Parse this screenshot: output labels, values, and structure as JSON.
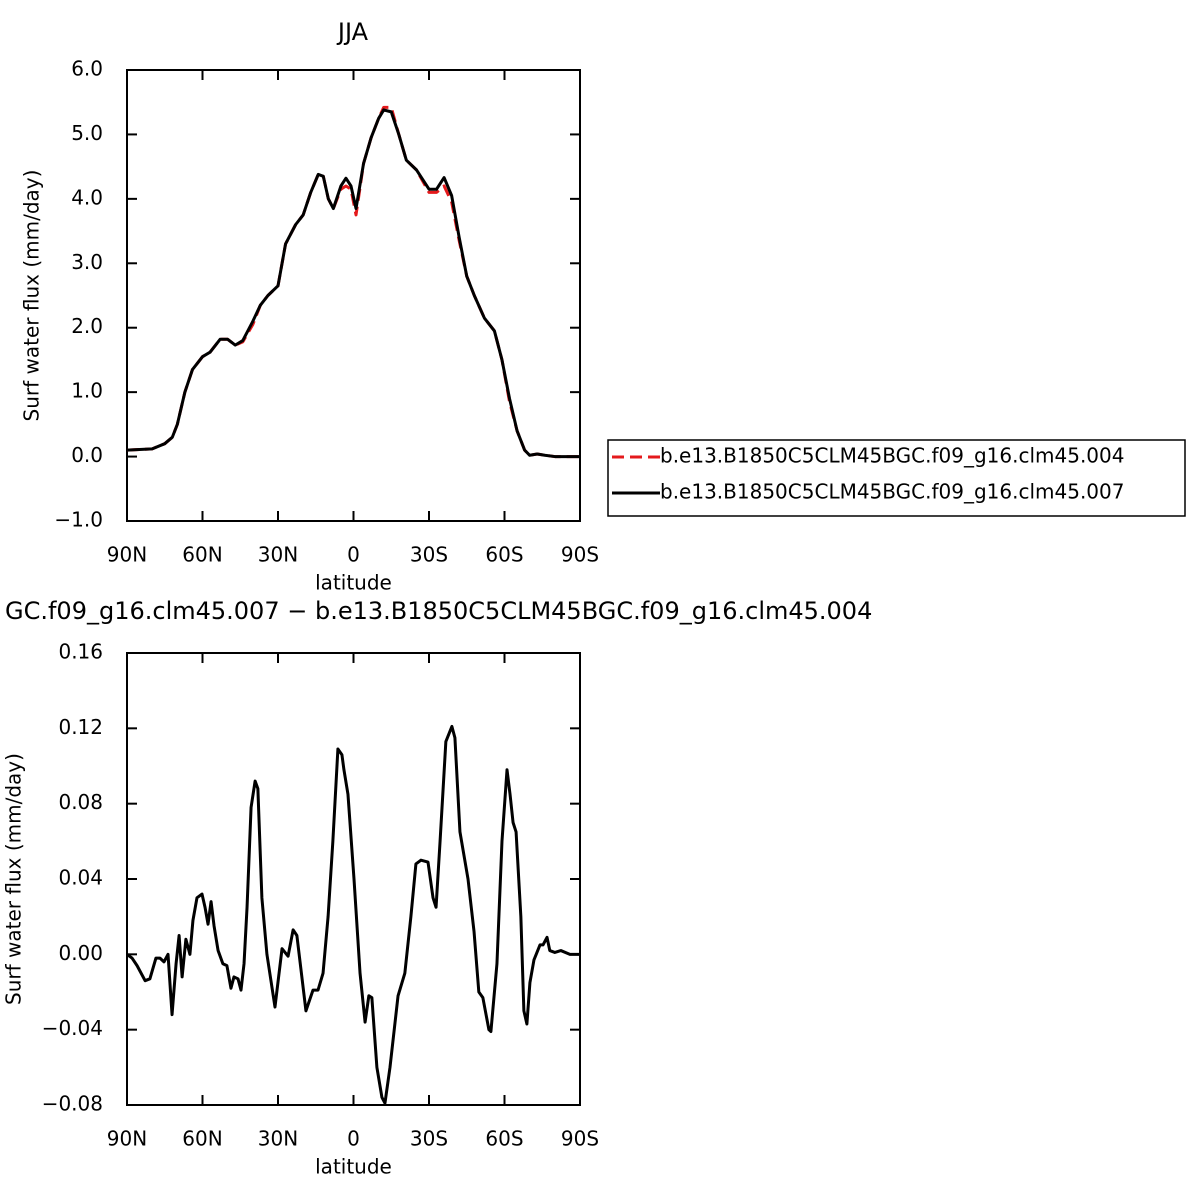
{
  "chart_data": [
    {
      "type": "line",
      "title": "JJA",
      "xlabel": "latitude",
      "ylabel": "Surf water flux (mm/day)",
      "xlim": [
        90,
        -90
      ],
      "xticks": [
        {
          "value": 90,
          "label": "90N"
        },
        {
          "value": 60,
          "label": "60N"
        },
        {
          "value": 30,
          "label": "30N"
        },
        0,
        {
          "value": -30,
          "label": "30S"
        },
        {
          "value": -60,
          "label": "60S"
        },
        {
          "value": -90,
          "label": "90S"
        }
      ],
      "ylim": [
        -1,
        6
      ],
      "yticks": [
        {
          "value": -1,
          "label": "−1.0"
        },
        {
          "value": 0,
          "label": "0.0"
        },
        {
          "value": 1,
          "label": "1.0"
        },
        {
          "value": 2,
          "label": "2.0"
        },
        {
          "value": 3,
          "label": "3.0"
        },
        {
          "value": 4,
          "label": "4.0"
        },
        {
          "value": 5,
          "label": "5.0"
        },
        {
          "value": 6,
          "label": "6.0"
        }
      ],
      "legend": "right",
      "x": [
        90,
        85,
        80,
        75,
        72,
        70,
        67,
        64,
        60,
        57,
        53,
        50,
        47,
        44,
        40,
        37,
        34,
        30,
        27,
        23,
        20,
        17,
        14,
        12,
        10,
        8,
        5,
        3,
        1,
        -1,
        -4,
        -7,
        -10,
        -12,
        -15,
        -18,
        -21,
        -25,
        -30,
        -33,
        -36,
        -39,
        -42,
        -45,
        -48,
        -52,
        -56,
        -59,
        -62,
        -65,
        -68,
        -70,
        -73,
        -76,
        -80,
        -85,
        -90
      ],
      "series": [
        {
          "name": "b.e13.B1850C5CLM45BGC.f09_g16.clm45.004",
          "color": "#e41a1c",
          "linestyle": "dashed",
          "values": [
            0.1,
            0.11,
            0.12,
            0.2,
            0.3,
            0.5,
            1.0,
            1.35,
            1.55,
            1.62,
            1.82,
            1.82,
            1.73,
            1.78,
            2.05,
            2.35,
            2.5,
            2.65,
            3.3,
            3.6,
            3.75,
            4.1,
            4.38,
            4.35,
            4.0,
            3.85,
            4.15,
            4.2,
            4.15,
            3.75,
            4.55,
            4.95,
            5.25,
            5.42,
            5.42,
            5.0,
            4.6,
            4.45,
            4.1,
            4.1,
            4.2,
            3.95,
            3.35,
            2.8,
            2.5,
            2.15,
            1.95,
            1.5,
            0.85,
            0.4,
            0.1,
            0.02,
            0.04,
            0.02,
            0.0,
            0.0,
            0.0
          ]
        },
        {
          "name": "b.e13.B1850C5CLM45BGC.f09_g16.clm45.007",
          "color": "#000000",
          "linestyle": "solid",
          "values": [
            0.1,
            0.11,
            0.12,
            0.2,
            0.3,
            0.5,
            1.0,
            1.35,
            1.55,
            1.62,
            1.82,
            1.82,
            1.73,
            1.8,
            2.1,
            2.35,
            2.5,
            2.65,
            3.3,
            3.6,
            3.75,
            4.1,
            4.38,
            4.35,
            4.0,
            3.85,
            4.2,
            4.32,
            4.2,
            3.85,
            4.55,
            4.95,
            5.25,
            5.38,
            5.35,
            5.0,
            4.6,
            4.45,
            4.15,
            4.15,
            4.33,
            4.05,
            3.4,
            2.8,
            2.5,
            2.15,
            1.95,
            1.5,
            0.9,
            0.4,
            0.1,
            0.02,
            0.04,
            0.02,
            0.0,
            0.0,
            0.0
          ]
        }
      ]
    },
    {
      "type": "line",
      "title": "GC.f09_g16.clm45.007 − b.e13.B1850C5CLM45BGC.f09_g16.clm45.004",
      "xlabel": "latitude",
      "ylabel": "Surf water flux (mm/day)",
      "xlim": [
        90,
        -90
      ],
      "xticks": [
        {
          "value": 90,
          "label": "90N"
        },
        {
          "value": 60,
          "label": "60N"
        },
        {
          "value": 30,
          "label": "30N"
        },
        0,
        {
          "value": -30,
          "label": "30S"
        },
        {
          "value": -60,
          "label": "60S"
        },
        {
          "value": -90,
          "label": "90S"
        }
      ],
      "ylim": [
        -0.08,
        0.16
      ],
      "yticks": [
        {
          "value": -0.08,
          "label": "−0.08"
        },
        {
          "value": -0.04,
          "label": "−0.04"
        },
        {
          "value": 0,
          "label": "0.00"
        },
        0.04,
        0.08,
        0.12,
        0.16
      ],
      "color": "#000000",
      "x": [
        90,
        88,
        86,
        82.8,
        80.9,
        78.5,
        76.9,
        75.3,
        73.7,
        72.1,
        70.5,
        69.3,
        68.1,
        66.6,
        65,
        63.8,
        62.2,
        60.2,
        59,
        57.8,
        56.6,
        55.4,
        53.8,
        51.9,
        50.3,
        48.7,
        47.5,
        45.9,
        44.7,
        43.5,
        42.3,
        40.7,
        39.1,
        38,
        36.4,
        34.4,
        31.2,
        28.4,
        26,
        24,
        22.5,
        18.9,
        16.1,
        14.1,
        12.1,
        10.1,
        8.2,
        6.2,
        4.6,
        3.8,
        2.2,
        -0.2,
        -2.6,
        -4.6,
        -6.1,
        -7.3,
        -9.3,
        -11.3,
        -12.5,
        -14.5,
        -17.7,
        -20.4,
        -22.8,
        -24.8,
        -26.8,
        -29.6,
        -31.6,
        -32.8,
        -34.4,
        -36.7,
        -39.1,
        -40.3,
        -42.3,
        -45.5,
        -47.9,
        -49.8,
        -51.4,
        -53.8,
        -54.6,
        -57,
        -59,
        -61,
        -62.2,
        -63.4,
        -64.6,
        -66.5,
        -67.7,
        -68.9,
        -70.1,
        -71.7,
        -74.1,
        -75.3,
        -76.9,
        -78,
        -80,
        -82.4,
        -86,
        -90
      ],
      "values": [
        0,
        -0.002,
        -0.006,
        -0.014,
        -0.013,
        -0.002,
        -0.002,
        -0.004,
        0,
        -0.032,
        -0.005,
        0.01,
        -0.012,
        0.008,
        0,
        0.018,
        0.03,
        0.032,
        0.025,
        0.016,
        0.028,
        0.015,
        0.002,
        -0.005,
        -0.006,
        -0.018,
        -0.012,
        -0.013,
        -0.019,
        -0.005,
        0.025,
        0.078,
        0.092,
        0.088,
        0.03,
        0,
        -0.028,
        0.003,
        -0.001,
        0.013,
        0.01,
        -0.03,
        -0.019,
        -0.019,
        -0.01,
        0.02,
        0.06,
        0.109,
        0.106,
        0.098,
        0.085,
        0.04,
        -0.01,
        -0.036,
        -0.022,
        -0.023,
        -0.06,
        -0.076,
        -0.079,
        -0.06,
        -0.022,
        -0.01,
        0.02,
        0.048,
        0.05,
        0.049,
        0.03,
        0.025,
        0.06,
        0.113,
        0.121,
        0.115,
        0.065,
        0.04,
        0.012,
        -0.02,
        -0.023,
        -0.04,
        -0.041,
        -0.005,
        0.06,
        0.098,
        0.085,
        0.07,
        0.065,
        0.02,
        -0.03,
        -0.037,
        -0.015,
        -0.003,
        0.005,
        0.005,
        0.009,
        0.002,
        0.001,
        0.002,
        0,
        0
      ]
    }
  ]
}
